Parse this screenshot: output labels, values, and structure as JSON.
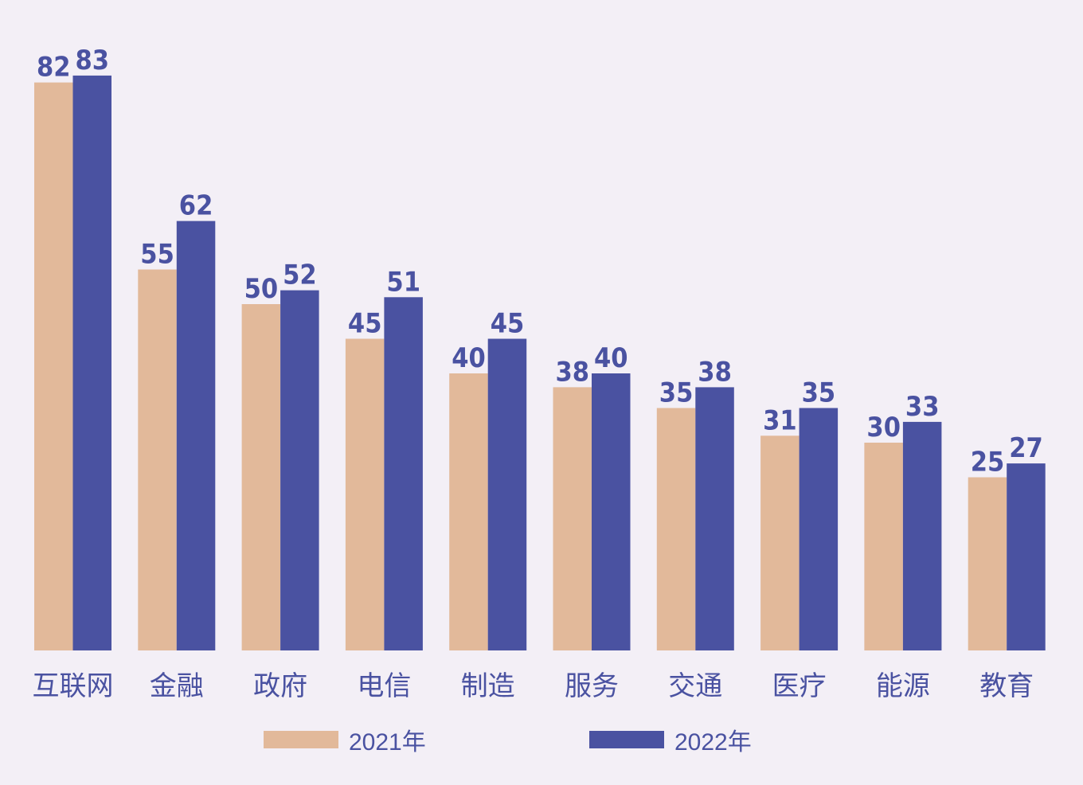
{
  "chart_data": {
    "type": "bar",
    "title": "",
    "xlabel": "",
    "ylabel": "",
    "categories": [
      "互联网",
      "金融",
      "政府",
      "电信",
      "制造",
      "服务",
      "交通",
      "医疗",
      "能源",
      "教育"
    ],
    "series": [
      {
        "name": "2021年",
        "values": [
          82,
          55,
          50,
          45,
          40,
          38,
          35,
          31,
          30,
          25
        ],
        "color": "#e2b99a"
      },
      {
        "name": "2022年",
        "values": [
          83,
          62,
          52,
          51,
          45,
          40,
          38,
          35,
          33,
          27
        ],
        "color": "#4a52a1"
      }
    ],
    "ylim": [
      0,
      90
    ],
    "grid": false,
    "legend_position": "bottom-center",
    "data_labels": true,
    "label_color": "#4a52a1",
    "category_label_color": "#4a52a1"
  }
}
